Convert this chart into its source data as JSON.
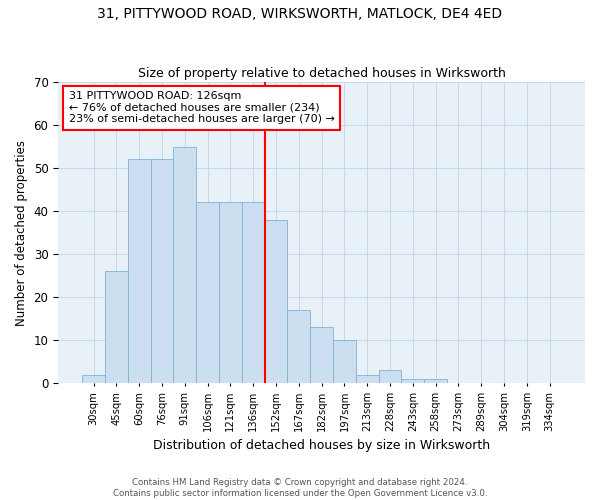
{
  "title_line1": "31, PITTYWOOD ROAD, WIRKSWORTH, MATLOCK, DE4 4ED",
  "title_line2": "Size of property relative to detached houses in Wirksworth",
  "xlabel": "Distribution of detached houses by size in Wirksworth",
  "ylabel": "Number of detached properties",
  "bar_values": [
    2,
    26,
    52,
    52,
    55,
    42,
    42,
    42,
    38,
    17,
    13,
    10,
    2,
    3,
    1,
    1,
    0,
    0,
    0,
    0,
    0
  ],
  "bar_labels": [
    "30sqm",
    "45sqm",
    "60sqm",
    "76sqm",
    "91sqm",
    "106sqm",
    "121sqm",
    "136sqm",
    "152sqm",
    "167sqm",
    "182sqm",
    "197sqm",
    "213sqm",
    "228sqm",
    "243sqm",
    "258sqm",
    "273sqm",
    "289sqm",
    "304sqm",
    "319sqm",
    "334sqm"
  ],
  "bar_color": "#ccdff0",
  "bar_edge_color": "#7fb3d3",
  "grid_color": "#c8d8e8",
  "bg_color": "#e8f0f8",
  "vline_index": 7,
  "vline_color": "red",
  "annotation_text": "31 PITTYWOOD ROAD: 126sqm\n← 76% of detached houses are smaller (234)\n23% of semi-detached houses are larger (70) →",
  "annotation_box_color": "white",
  "annotation_box_edge": "red",
  "ylim": [
    0,
    70
  ],
  "yticks": [
    0,
    10,
    20,
    30,
    40,
    50,
    60,
    70
  ],
  "footer_line1": "Contains HM Land Registry data © Crown copyright and database right 2024.",
  "footer_line2": "Contains public sector information licensed under the Open Government Licence v3.0."
}
